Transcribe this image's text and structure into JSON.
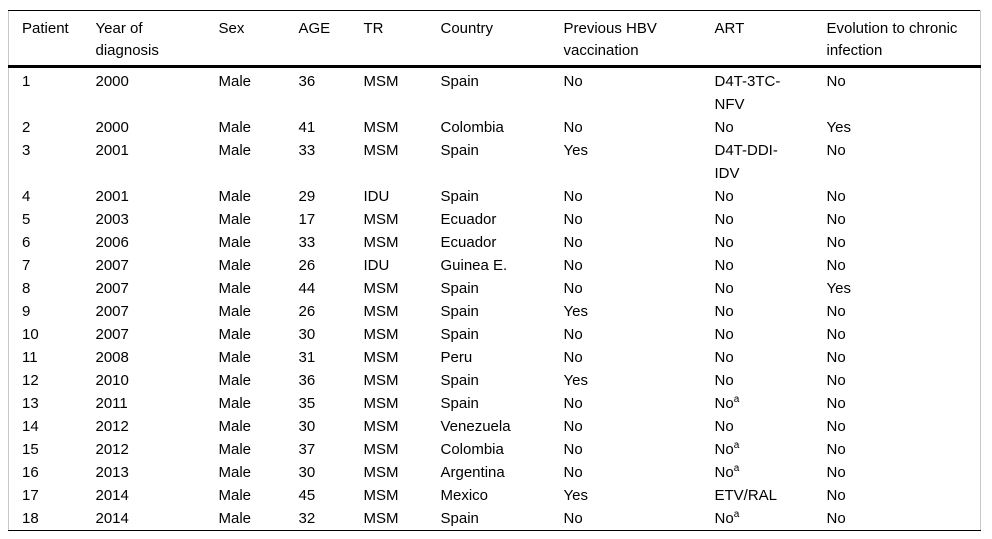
{
  "table": {
    "superscript_marker": "^",
    "columns": [
      "Patient",
      "Year of\ndiagnosis",
      "Sex",
      "AGE",
      "TR",
      "Country",
      "Previous HBV\nvaccination",
      "ART",
      "Evolution to chronic\ninfection"
    ],
    "rows": [
      [
        "1",
        "2000",
        "Male",
        "36",
        "MSM",
        "Spain",
        "No",
        "D4T-3TC-\nNFV",
        "No"
      ],
      [
        "2",
        "2000",
        "Male",
        "41",
        "MSM",
        "Colombia",
        "No",
        "No",
        "Yes"
      ],
      [
        "3",
        "2001",
        "Male",
        "33",
        "MSM",
        "Spain",
        "Yes",
        "D4T-DDI-\nIDV",
        "No"
      ],
      [
        "4",
        "2001",
        "Male",
        "29",
        "IDU",
        "Spain",
        "No",
        "No",
        "No"
      ],
      [
        "5",
        "2003",
        "Male",
        "17",
        "MSM",
        "Ecuador",
        "No",
        "No",
        "No"
      ],
      [
        "6",
        "2006",
        "Male",
        "33",
        "MSM",
        "Ecuador",
        "No",
        "No",
        "No"
      ],
      [
        "7",
        "2007",
        "Male",
        "26",
        "IDU",
        "Guinea E.",
        "No",
        "No",
        "No"
      ],
      [
        "8",
        "2007",
        "Male",
        "44",
        "MSM",
        "Spain",
        "No",
        "No",
        "Yes"
      ],
      [
        "9",
        "2007",
        "Male",
        "26",
        "MSM",
        "Spain",
        "Yes",
        "No",
        "No"
      ],
      [
        "10",
        "2007",
        "Male",
        "30",
        "MSM",
        "Spain",
        "No",
        "No",
        "No"
      ],
      [
        "11",
        "2008",
        "Male",
        "31",
        "MSM",
        "Peru",
        "No",
        "No",
        "No"
      ],
      [
        "12",
        "2010",
        "Male",
        "36",
        "MSM",
        "Spain",
        "Yes",
        "No",
        "No"
      ],
      [
        "13",
        "2011",
        "Male",
        "35",
        "MSM",
        "Spain",
        "No",
        "No^a",
        "No"
      ],
      [
        "14",
        "2012",
        "Male",
        "30",
        "MSM",
        "Venezuela",
        "No",
        "No",
        "No"
      ],
      [
        "15",
        "2012",
        "Male",
        "37",
        "MSM",
        "Colombia",
        "No",
        "No^a",
        "No"
      ],
      [
        "16",
        "2013",
        "Male",
        "30",
        "MSM",
        "Argentina",
        "No",
        "No^a",
        "No"
      ],
      [
        "17",
        "2014",
        "Male",
        "45",
        "MSM",
        "Mexico",
        "Yes",
        "ETV/RAL",
        "No"
      ],
      [
        "18",
        "2014",
        "Male",
        "32",
        "MSM",
        "Spain",
        "No",
        "No^a",
        "No"
      ]
    ]
  },
  "colors": {
    "rule": "#000000",
    "edge": "#c8c8c8",
    "text": "#000000",
    "background": "#ffffff"
  }
}
